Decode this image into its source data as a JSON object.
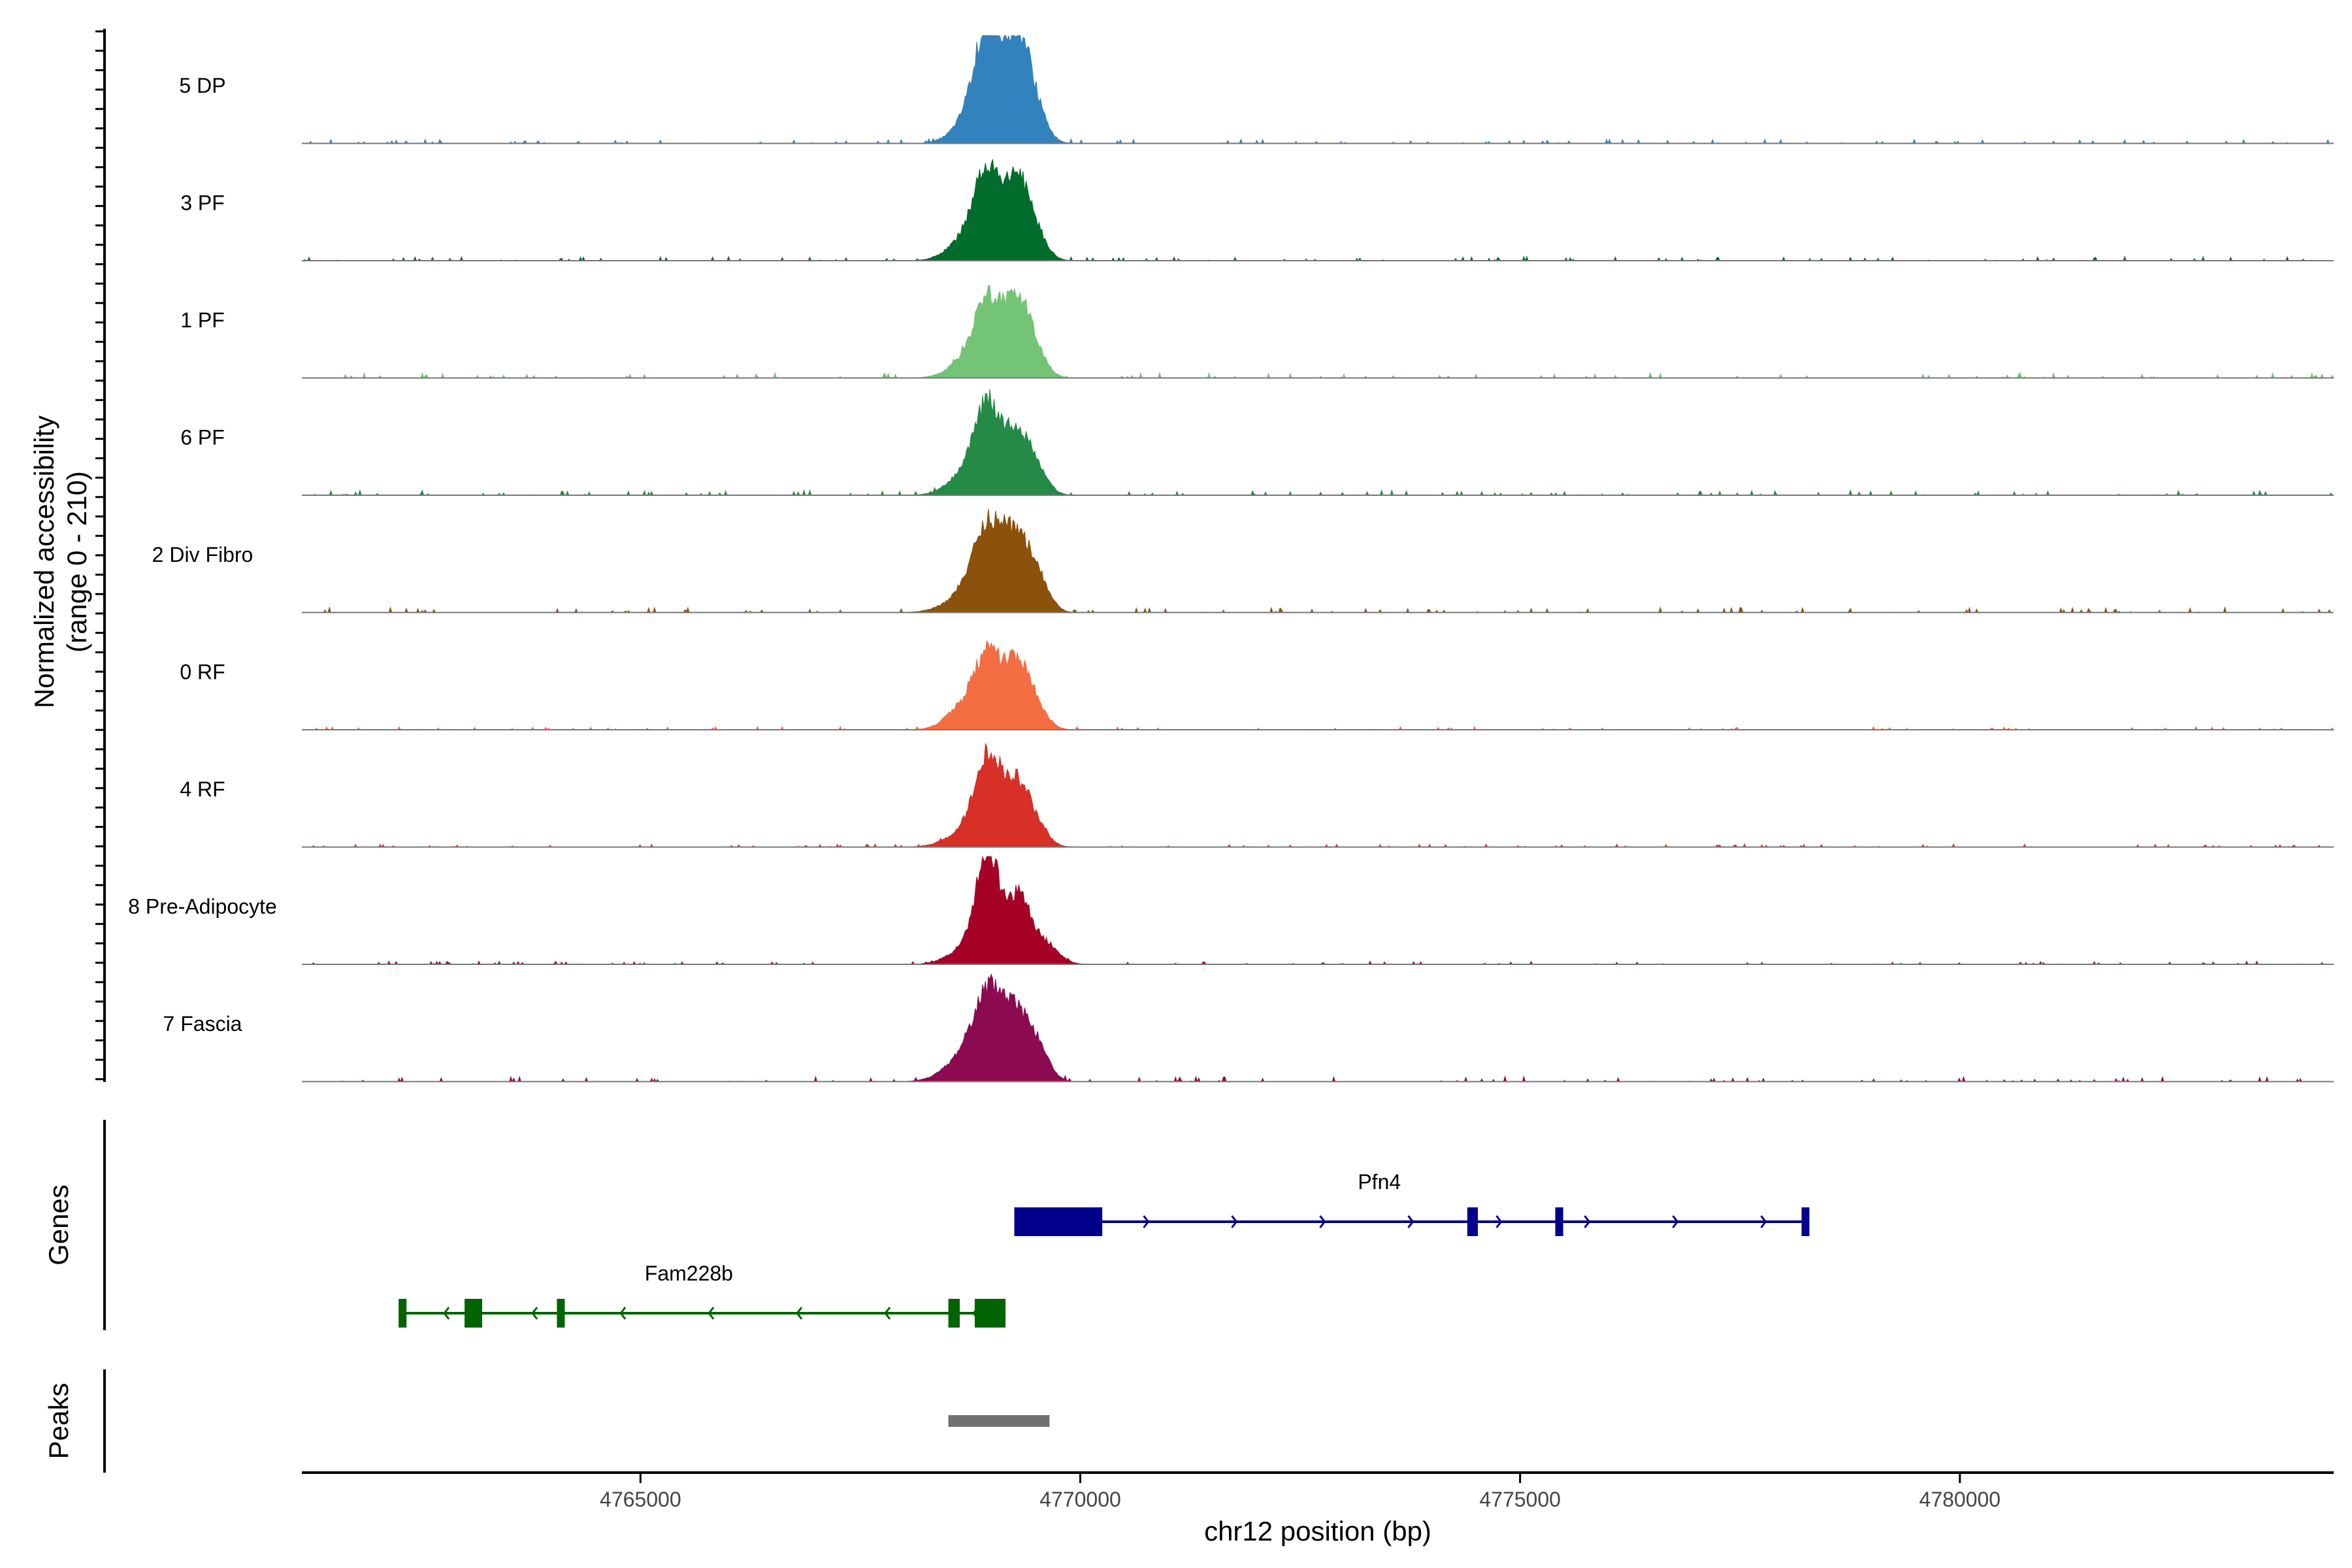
{
  "chart_data": {
    "type": "area",
    "xlabel": "chr12 position (bp)",
    "ylabel_line1": "Normalized accessibility",
    "ylabel_line2": "(range 0 - 210)",
    "ylim": [
      0,
      210
    ],
    "xlim": [
      4761150,
      4784250
    ],
    "x_ticks": [
      4765000,
      4770000,
      4775000,
      4780000
    ],
    "x_tick_labels": [
      "4765000",
      "4770000",
      "4775000",
      "4780000"
    ],
    "series": [
      {
        "name": "5 DP",
        "color": "#3182bd",
        "peaks": [
          [
            4768950,
            150,
            200
          ],
          [
            4769300,
            150,
            210
          ],
          [
            4768750,
            200,
            40
          ],
          [
            4769550,
            120,
            25
          ]
        ],
        "background": 4
      },
      {
        "name": "3 PF",
        "color": "#006d2c",
        "peaks": [
          [
            4768950,
            150,
            160
          ],
          [
            4769300,
            150,
            155
          ],
          [
            4768700,
            200,
            40
          ],
          [
            4769550,
            120,
            20
          ]
        ],
        "background": 4
      },
      {
        "name": "1 PF",
        "color": "#74c476",
        "peaks": [
          [
            4768950,
            150,
            140
          ],
          [
            4769300,
            150,
            150
          ],
          [
            4768700,
            200,
            30
          ],
          [
            4769550,
            120,
            20
          ]
        ],
        "background": 5
      },
      {
        "name": "6 PF",
        "color": "#238b45",
        "peaks": [
          [
            4768950,
            150,
            160
          ],
          [
            4769300,
            150,
            120
          ],
          [
            4768700,
            200,
            40
          ],
          [
            4769550,
            120,
            25
          ]
        ],
        "background": 5
      },
      {
        "name": "2 Div Fibro",
        "color": "#8c510a",
        "peaks": [
          [
            4768950,
            180,
            150
          ],
          [
            4769300,
            180,
            130
          ],
          [
            4768650,
            220,
            25
          ],
          [
            4769550,
            120,
            30
          ]
        ],
        "background": 5
      },
      {
        "name": "0 RF",
        "color": "#f46d43",
        "peaks": [
          [
            4768950,
            150,
            140
          ],
          [
            4769300,
            150,
            130
          ],
          [
            4768650,
            180,
            40
          ],
          [
            4769550,
            120,
            20
          ]
        ],
        "background": 3
      },
      {
        "name": "4 RF",
        "color": "#d73027",
        "peaks": [
          [
            4768950,
            150,
            170
          ],
          [
            4769300,
            150,
            120
          ],
          [
            4768650,
            200,
            25
          ],
          [
            4769550,
            120,
            20
          ]
        ],
        "background": 3
      },
      {
        "name": "8 Pre-Adipocyte",
        "color": "#a50026",
        "peaks": [
          [
            4768950,
            130,
            210
          ],
          [
            4769300,
            130,
            130
          ],
          [
            4768700,
            200,
            30
          ],
          [
            4769600,
            150,
            40
          ]
        ],
        "background": 3
      },
      {
        "name": "7 Fascia",
        "color": "#8b0a50",
        "peaks": [
          [
            4768950,
            180,
            150
          ],
          [
            4769300,
            180,
            120
          ],
          [
            4768650,
            220,
            35
          ],
          [
            4769550,
            120,
            30
          ]
        ],
        "background": 5
      }
    ],
    "genes_track_label": "Genes",
    "peaks_track_label": "Peaks",
    "genes": [
      {
        "name": "Pfn4",
        "strand": "+",
        "color": "#00008b",
        "start": 4769250,
        "end": 4778250,
        "exons": [
          [
            4769250,
            4770250
          ],
          [
            4774400,
            4774520
          ],
          [
            4775400,
            4775490
          ],
          [
            4778200,
            4778260
          ]
        ]
      },
      {
        "name": "Fam228b",
        "strand": "-",
        "color": "#006400",
        "start": 4762250,
        "end": 4769150,
        "exons": [
          [
            4762250,
            4762340
          ],
          [
            4763000,
            4763200
          ],
          [
            4764050,
            4764110
          ],
          [
            4768500,
            4768630
          ],
          [
            4768800,
            4769150
          ]
        ]
      }
    ],
    "peaks": [
      [
        4768500,
        4769650
      ]
    ],
    "peak_color": "#707070"
  }
}
